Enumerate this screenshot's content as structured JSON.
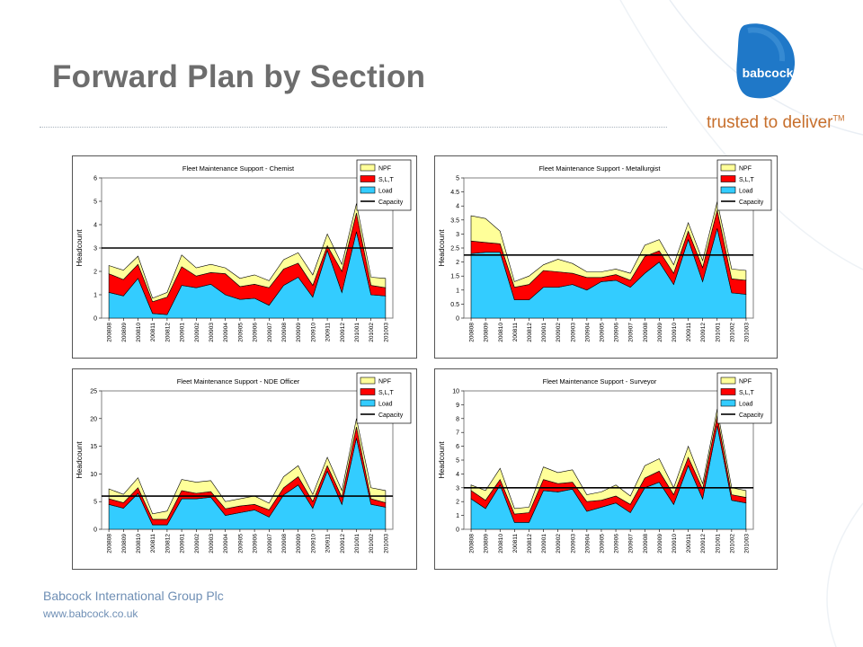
{
  "slide": {
    "title": "Forward Plan by Section",
    "brand": "babcock",
    "tagline": "trusted to deliver",
    "tagline_mark": "TM",
    "footer_company": "Babcock International Group Plc",
    "footer_url": "www.babcock.co.uk",
    "colors": {
      "title": "#6d6d6d",
      "logo_blue": "#1f78c8",
      "tagline": "#c76f2c",
      "footer": "#6f8fb5"
    }
  },
  "chart_data": [
    {
      "type": "area",
      "title": "Fleet Maintenance Support - Chemist",
      "ylabel": "Headcount",
      "ylim": [
        0,
        6
      ],
      "yticks": [
        0,
        1,
        2,
        3,
        4,
        5,
        6
      ],
      "categories": [
        "200808",
        "200809",
        "200810",
        "200811",
        "200812",
        "200901",
        "200902",
        "200903",
        "200904",
        "200905",
        "200906",
        "200907",
        "200908",
        "200909",
        "200910",
        "200911",
        "200912",
        "201001",
        "201002",
        "201003"
      ],
      "series": [
        {
          "name": "Load",
          "color": "#33ccff",
          "values": [
            1.1,
            0.95,
            1.7,
            0.2,
            0.15,
            1.4,
            1.3,
            1.45,
            1.0,
            0.8,
            0.85,
            0.55,
            1.4,
            1.75,
            0.9,
            2.9,
            1.1,
            3.7,
            1.0,
            0.95
          ]
        },
        {
          "name": "S,L,T",
          "color": "#ff0000",
          "values": [
            0.8,
            0.7,
            0.6,
            0.5,
            0.75,
            0.8,
            0.5,
            0.5,
            0.9,
            0.55,
            0.6,
            0.75,
            0.7,
            0.6,
            0.5,
            0.2,
            0.9,
            0.8,
            0.4,
            0.35
          ]
        },
        {
          "name": "NPF",
          "color": "#ffff99",
          "values": [
            0.35,
            0.4,
            0.35,
            0.15,
            0.2,
            0.5,
            0.35,
            0.35,
            0.25,
            0.35,
            0.4,
            0.3,
            0.4,
            0.45,
            0.45,
            0.5,
            0.3,
            0.4,
            0.35,
            0.4
          ]
        }
      ],
      "capacity": {
        "name": "Capacity",
        "value": 3
      },
      "legend": "top-right"
    },
    {
      "type": "area",
      "title": "Fleet Maintenance Support - Metallurgist",
      "ylabel": "Headcount",
      "ylim": [
        0,
        5
      ],
      "yticks": [
        0,
        0.5,
        1,
        1.5,
        2,
        2.5,
        3,
        3.5,
        4,
        4.5,
        5
      ],
      "categories": [
        "200808",
        "200809",
        "200810",
        "200811",
        "200812",
        "200901",
        "200902",
        "200903",
        "200904",
        "200905",
        "200906",
        "200907",
        "200908",
        "200909",
        "200910",
        "200911",
        "200912",
        "201001",
        "201002",
        "201003"
      ],
      "series": [
        {
          "name": "Load",
          "color": "#33ccff",
          "values": [
            2.3,
            2.35,
            2.35,
            0.65,
            0.65,
            1.1,
            1.1,
            1.2,
            1.0,
            1.3,
            1.35,
            1.1,
            1.6,
            2.0,
            1.2,
            2.8,
            1.3,
            3.2,
            0.9,
            0.85
          ]
        },
        {
          "name": "S,L,T",
          "color": "#ff0000",
          "values": [
            0.45,
            0.35,
            0.3,
            0.45,
            0.55,
            0.6,
            0.55,
            0.4,
            0.45,
            0.15,
            0.2,
            0.25,
            0.6,
            0.4,
            0.4,
            0.3,
            0.5,
            0.65,
            0.5,
            0.5
          ]
        },
        {
          "name": "NPF",
          "color": "#ffff99",
          "values": [
            0.9,
            0.85,
            0.45,
            0.2,
            0.3,
            0.2,
            0.45,
            0.35,
            0.2,
            0.2,
            0.2,
            0.25,
            0.4,
            0.4,
            0.3,
            0.3,
            0.25,
            0.3,
            0.35,
            0.35
          ]
        }
      ],
      "capacity": {
        "name": "Capacity",
        "value": 2.25
      },
      "legend": "top-right"
    },
    {
      "type": "area",
      "title": "Fleet Maintenance Support - NDE Officer",
      "ylabel": "Headcount",
      "ylim": [
        0,
        25
      ],
      "yticks": [
        0,
        5,
        10,
        15,
        20,
        25
      ],
      "categories": [
        "200808",
        "200809",
        "200810",
        "200811",
        "200812",
        "200901",
        "200902",
        "200903",
        "200904",
        "200905",
        "200906",
        "200907",
        "200908",
        "200909",
        "200910",
        "200911",
        "200912",
        "201001",
        "201002",
        "201003"
      ],
      "series": [
        {
          "name": "Load",
          "color": "#33ccff",
          "values": [
            4.5,
            3.8,
            6.5,
            0.8,
            0.8,
            5.5,
            5.5,
            5.8,
            2.5,
            3.0,
            3.5,
            2.2,
            6.2,
            8.0,
            3.8,
            10.5,
            4.5,
            16.5,
            4.5,
            4.0
          ]
        },
        {
          "name": "S,L,T",
          "color": "#ff0000",
          "values": [
            1.0,
            1.0,
            1.0,
            1.0,
            1.0,
            1.5,
            1.0,
            1.0,
            1.2,
            1.2,
            1.0,
            1.3,
            1.3,
            1.5,
            1.2,
            1.0,
            1.3,
            2.0,
            1.0,
            0.8
          ]
        },
        {
          "name": "NPF",
          "color": "#ffff99",
          "values": [
            1.8,
            1.5,
            1.8,
            1.0,
            1.5,
            2.0,
            2.0,
            2.0,
            1.3,
            1.3,
            1.5,
            1.2,
            2.0,
            2.0,
            1.3,
            1.5,
            1.2,
            1.5,
            2.0,
            2.2
          ]
        }
      ],
      "capacity": {
        "name": "Capacity",
        "value": 6
      },
      "legend": "top-right"
    },
    {
      "type": "area",
      "title": "Fleet Maintenance Support - Surveyor",
      "ylabel": "Headcount",
      "ylim": [
        0,
        10
      ],
      "yticks": [
        0,
        1,
        2,
        3,
        4,
        5,
        6,
        7,
        8,
        9,
        10
      ],
      "categories": [
        "200808",
        "200809",
        "200810",
        "200811",
        "200812",
        "200901",
        "200902",
        "200903",
        "200904",
        "200905",
        "200906",
        "200907",
        "200908",
        "200909",
        "200910",
        "200911",
        "200912",
        "201001",
        "201002",
        "201003"
      ],
      "series": [
        {
          "name": "Load",
          "color": "#33ccff",
          "values": [
            2.2,
            1.5,
            3.2,
            0.5,
            0.5,
            2.8,
            2.7,
            2.9,
            1.3,
            1.6,
            1.9,
            1.2,
            3.0,
            3.4,
            1.8,
            4.6,
            2.2,
            7.5,
            2.1,
            1.9
          ]
        },
        {
          "name": "S,L,T",
          "color": "#ff0000",
          "values": [
            0.6,
            0.6,
            0.4,
            0.6,
            0.7,
            0.8,
            0.6,
            0.5,
            0.7,
            0.5,
            0.5,
            0.6,
            0.7,
            0.8,
            0.7,
            0.6,
            0.7,
            0.7,
            0.4,
            0.4
          ]
        },
        {
          "name": "NPF",
          "color": "#ffff99",
          "values": [
            0.4,
            0.7,
            0.8,
            0.4,
            0.4,
            0.9,
            0.8,
            0.9,
            0.5,
            0.6,
            0.8,
            0.6,
            0.9,
            0.9,
            0.5,
            0.8,
            0.4,
            0.5,
            0.5,
            0.5
          ]
        }
      ],
      "capacity": {
        "name": "Capacity",
        "value": 3
      },
      "legend": "top-right"
    }
  ]
}
